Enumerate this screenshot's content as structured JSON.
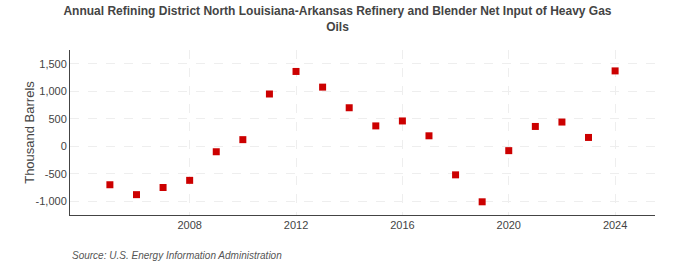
{
  "chart_data": {
    "type": "scatter",
    "title": "Annual Refining District North Louisiana-Arkansas Refinery and Blender Net Input of Heavy Gas\nOils",
    "ylabel": "Thousand Barrels",
    "annotations": [
      "Source: U.S. Energy Information Administration"
    ],
    "x": [
      2005,
      2006,
      2007,
      2008,
      2009,
      2010,
      2011,
      2012,
      2013,
      2014,
      2015,
      2016,
      2017,
      2018,
      2019,
      2020,
      2021,
      2022,
      2023,
      2024
    ],
    "values": [
      -700,
      -880,
      -750,
      -620,
      -100,
      120,
      950,
      1360,
      1075,
      700,
      370,
      460,
      190,
      -520,
      -1010,
      -80,
      360,
      440,
      160,
      1370
    ],
    "color": "#cc0000",
    "marker": "square",
    "xlim": [
      2003.5,
      2025.5
    ],
    "xticks": [
      2008,
      2012,
      2016,
      2020,
      2024
    ],
    "ylim": [
      -1250,
      1750
    ],
    "yticks": [
      {
        "value": -1000,
        "label": "-1,000"
      },
      -500,
      0,
      500,
      {
        "value": 1000,
        "label": "1,000"
      },
      {
        "value": 1500,
        "label": "1,500"
      }
    ],
    "grid": true
  }
}
